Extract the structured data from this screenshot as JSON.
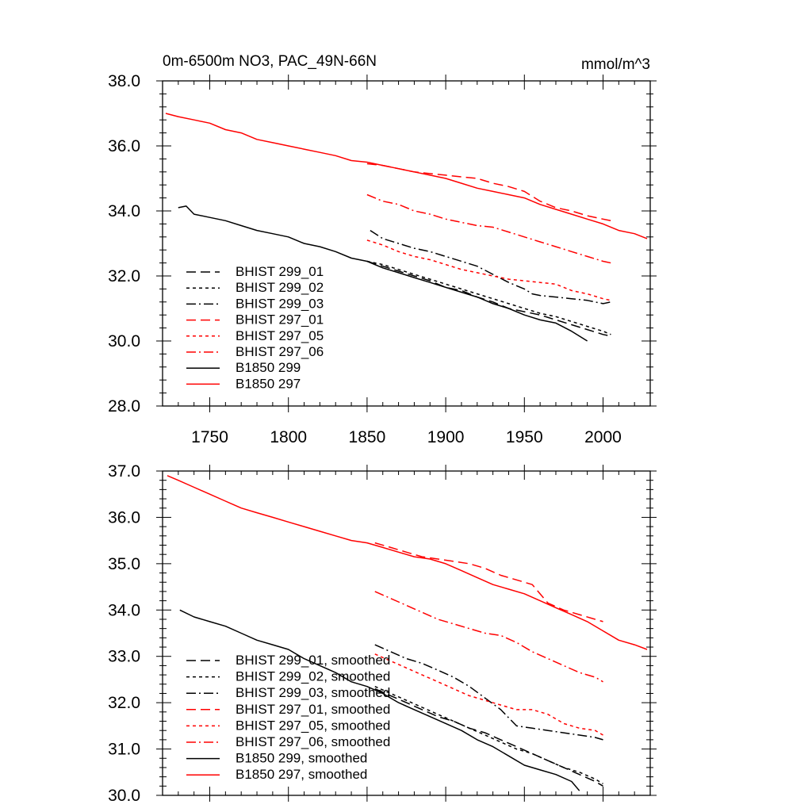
{
  "colors": {
    "black": "#000000",
    "red": "#ff0000"
  },
  "header": {
    "title": "0m-6500m NO3, PAC_49N-66N",
    "units": "mmol/m^3"
  },
  "chart_data": [
    {
      "type": "line",
      "xlim": [
        1720,
        2030
      ],
      "ylim": [
        28,
        38
      ],
      "x_ticks": [
        1750,
        1800,
        1850,
        1900,
        1950,
        2000
      ],
      "x_tick_labels": [
        "1750",
        "1800",
        "1850",
        "1900",
        "1950",
        "2000"
      ],
      "y_ticks": [
        28,
        30,
        32,
        34,
        36,
        38
      ],
      "y_tick_labels": [
        "28.0",
        "30.0",
        "32.0",
        "34.0",
        "36.0",
        "38.0"
      ],
      "legend_position": "bottom-left",
      "series": [
        {
          "name": "BHIST 299_01",
          "color": "#000000",
          "dash": "long-dash",
          "x": [
            1850,
            1860,
            1870,
            1880,
            1890,
            1900,
            1910,
            1920,
            1930,
            1940,
            1950,
            1960,
            1970,
            1980,
            1990,
            2000,
            2005
          ],
          "y": [
            32.45,
            32.3,
            32.15,
            32.0,
            31.85,
            31.65,
            31.55,
            31.35,
            31.2,
            31.0,
            30.9,
            30.8,
            30.65,
            30.5,
            30.35,
            30.2,
            30.15
          ]
        },
        {
          "name": "BHIST 299_02",
          "color": "#000000",
          "dash": "short-dash",
          "x": [
            1850,
            1860,
            1870,
            1880,
            1890,
            1900,
            1910,
            1920,
            1930,
            1940,
            1950,
            1960,
            1970,
            1980,
            1990,
            2000,
            2005
          ],
          "y": [
            32.45,
            32.35,
            32.2,
            32.05,
            31.9,
            31.75,
            31.6,
            31.45,
            31.3,
            31.15,
            31.0,
            30.85,
            30.75,
            30.6,
            30.45,
            30.3,
            30.2
          ]
        },
        {
          "name": "BHIST 299_03",
          "color": "#000000",
          "dash": "dash-dot",
          "x": [
            1852,
            1860,
            1870,
            1880,
            1890,
            1900,
            1910,
            1920,
            1930,
            1940,
            1950,
            1955,
            1960,
            1970,
            1980,
            1990,
            2000,
            2005
          ],
          "y": [
            33.4,
            33.15,
            33.0,
            32.85,
            32.75,
            32.6,
            32.45,
            32.3,
            32.05,
            31.8,
            31.6,
            31.45,
            31.4,
            31.35,
            31.3,
            31.25,
            31.15,
            31.2
          ]
        },
        {
          "name": "BHIST 297_01",
          "color": "#ff0000",
          "dash": "long-dash",
          "x": [
            1850,
            1860,
            1870,
            1880,
            1890,
            1900,
            1910,
            1920,
            1930,
            1940,
            1950,
            1960,
            1970,
            1980,
            1990,
            2000,
            2005
          ],
          "y": [
            35.45,
            35.4,
            35.3,
            35.2,
            35.15,
            35.1,
            35.05,
            35.0,
            34.85,
            34.75,
            34.6,
            34.3,
            34.1,
            34.0,
            33.85,
            33.75,
            33.7
          ]
        },
        {
          "name": "BHIST 297_05",
          "color": "#ff0000",
          "dash": "short-dash",
          "x": [
            1850,
            1860,
            1870,
            1880,
            1890,
            1900,
            1910,
            1920,
            1930,
            1940,
            1950,
            1960,
            1970,
            1980,
            1990,
            2000,
            2005
          ],
          "y": [
            33.1,
            32.95,
            32.75,
            32.6,
            32.5,
            32.35,
            32.2,
            32.1,
            32.0,
            31.9,
            31.85,
            31.8,
            31.75,
            31.55,
            31.45,
            31.3,
            31.25
          ]
        },
        {
          "name": "BHIST 297_06",
          "color": "#ff0000",
          "dash": "dash-dot",
          "x": [
            1850,
            1860,
            1870,
            1880,
            1890,
            1900,
            1910,
            1920,
            1930,
            1940,
            1950,
            1960,
            1970,
            1980,
            1990,
            2000,
            2005
          ],
          "y": [
            34.5,
            34.3,
            34.2,
            34.0,
            33.9,
            33.75,
            33.65,
            33.55,
            33.5,
            33.35,
            33.2,
            33.05,
            32.9,
            32.75,
            32.6,
            32.45,
            32.4
          ]
        },
        {
          "name": "B1850 299",
          "color": "#000000",
          "dash": "solid",
          "x": [
            1730,
            1735,
            1740,
            1750,
            1760,
            1770,
            1780,
            1790,
            1800,
            1810,
            1820,
            1830,
            1840,
            1850,
            1860,
            1870,
            1880,
            1890,
            1900,
            1910,
            1920,
            1930,
            1940,
            1950,
            1960,
            1970,
            1980,
            1990
          ],
          "y": [
            34.1,
            34.15,
            33.9,
            33.8,
            33.7,
            33.55,
            33.4,
            33.3,
            33.2,
            33.0,
            32.9,
            32.75,
            32.55,
            32.45,
            32.25,
            32.1,
            31.95,
            31.8,
            31.65,
            31.5,
            31.35,
            31.15,
            31.0,
            30.8,
            30.65,
            30.55,
            30.3,
            30.0
          ]
        },
        {
          "name": "B1850 297",
          "color": "#ff0000",
          "dash": "solid",
          "x": [
            1722,
            1730,
            1740,
            1750,
            1760,
            1770,
            1780,
            1790,
            1800,
            1810,
            1820,
            1830,
            1840,
            1850,
            1860,
            1870,
            1880,
            1890,
            1900,
            1910,
            1920,
            1930,
            1940,
            1950,
            1960,
            1970,
            1980,
            1990,
            2000,
            2010,
            2020,
            2028
          ],
          "y": [
            37.0,
            36.9,
            36.8,
            36.7,
            36.5,
            36.4,
            36.2,
            36.1,
            36.0,
            35.9,
            35.8,
            35.7,
            35.55,
            35.5,
            35.4,
            35.3,
            35.2,
            35.1,
            35.0,
            34.85,
            34.7,
            34.6,
            34.5,
            34.4,
            34.2,
            34.05,
            33.9,
            33.75,
            33.6,
            33.4,
            33.3,
            33.15
          ]
        }
      ]
    },
    {
      "type": "line",
      "xlim": [
        1720,
        2030
      ],
      "ylim": [
        30,
        37
      ],
      "x_ticks": [
        1750,
        1800,
        1850,
        1900,
        1950,
        2000
      ],
      "x_tick_labels": [],
      "y_ticks": [
        30,
        31,
        32,
        33,
        34,
        35,
        36,
        37
      ],
      "y_tick_labels": [
        "30.0",
        "31.0",
        "32.0",
        "33.0",
        "34.0",
        "35.0",
        "36.0",
        "37.0"
      ],
      "legend_position": "bottom-left",
      "series": [
        {
          "name": "BHIST 299_01, smoothed",
          "color": "#000000",
          "dash": "long-dash",
          "x": [
            1855,
            1865,
            1875,
            1885,
            1895,
            1905,
            1915,
            1925,
            1935,
            1945,
            1955,
            1965,
            1975,
            1985,
            1995,
            2000
          ],
          "y": [
            32.3,
            32.15,
            32.0,
            31.85,
            31.7,
            31.6,
            31.45,
            31.35,
            31.2,
            31.05,
            30.9,
            30.75,
            30.6,
            30.45,
            30.3,
            30.2
          ]
        },
        {
          "name": "BHIST 299_02, smoothed",
          "color": "#000000",
          "dash": "short-dash",
          "x": [
            1855,
            1865,
            1875,
            1885,
            1895,
            1905,
            1915,
            1925,
            1935,
            1945,
            1955,
            1965,
            1975,
            1985,
            1995,
            2000
          ],
          "y": [
            32.35,
            32.2,
            32.05,
            31.9,
            31.75,
            31.6,
            31.45,
            31.3,
            31.15,
            31.0,
            30.9,
            30.75,
            30.6,
            30.5,
            30.35,
            30.25
          ]
        },
        {
          "name": "BHIST 299_03, smoothed",
          "color": "#000000",
          "dash": "dash-dot",
          "x": [
            1855,
            1865,
            1875,
            1885,
            1895,
            1905,
            1915,
            1925,
            1935,
            1945,
            1955,
            1965,
            1975,
            1985,
            1995,
            2000
          ],
          "y": [
            33.25,
            33.1,
            32.95,
            32.85,
            32.7,
            32.55,
            32.35,
            32.1,
            31.85,
            31.5,
            31.45,
            31.4,
            31.35,
            31.3,
            31.25,
            31.2
          ]
        },
        {
          "name": "BHIST 297_01, smoothed",
          "color": "#ff0000",
          "dash": "long-dash",
          "x": [
            1855,
            1865,
            1875,
            1885,
            1895,
            1905,
            1915,
            1925,
            1935,
            1945,
            1955,
            1965,
            1975,
            1985,
            1995,
            2000
          ],
          "y": [
            35.45,
            35.35,
            35.25,
            35.15,
            35.1,
            35.05,
            35.0,
            34.9,
            34.75,
            34.65,
            34.55,
            34.15,
            34.0,
            33.9,
            33.8,
            33.75
          ]
        },
        {
          "name": "BHIST 297_05, smoothed",
          "color": "#ff0000",
          "dash": "short-dash",
          "x": [
            1855,
            1865,
            1875,
            1885,
            1895,
            1905,
            1915,
            1925,
            1935,
            1945,
            1955,
            1965,
            1975,
            1985,
            1995,
            2000
          ],
          "y": [
            33.05,
            32.9,
            32.75,
            32.6,
            32.45,
            32.3,
            32.15,
            32.05,
            31.95,
            31.85,
            31.85,
            31.75,
            31.55,
            31.45,
            31.4,
            31.3
          ]
        },
        {
          "name": "BHIST 297_06, smoothed",
          "color": "#ff0000",
          "dash": "dash-dot",
          "x": [
            1855,
            1865,
            1875,
            1885,
            1895,
            1905,
            1915,
            1925,
            1935,
            1945,
            1955,
            1965,
            1975,
            1985,
            1995,
            2000
          ],
          "y": [
            34.4,
            34.25,
            34.1,
            33.95,
            33.8,
            33.7,
            33.6,
            33.5,
            33.45,
            33.3,
            33.1,
            32.95,
            32.8,
            32.65,
            32.55,
            32.45
          ]
        },
        {
          "name": "B1850 299, smoothed",
          "color": "#000000",
          "dash": "solid",
          "x": [
            1731,
            1740,
            1750,
            1760,
            1770,
            1780,
            1790,
            1800,
            1810,
            1820,
            1830,
            1840,
            1850,
            1860,
            1870,
            1880,
            1890,
            1900,
            1910,
            1920,
            1930,
            1940,
            1950,
            1960,
            1970,
            1980,
            1985
          ],
          "y": [
            34.0,
            33.85,
            33.75,
            33.65,
            33.5,
            33.35,
            33.25,
            33.15,
            32.95,
            32.8,
            32.65,
            32.45,
            32.35,
            32.2,
            32.0,
            31.85,
            31.7,
            31.55,
            31.4,
            31.2,
            31.05,
            30.85,
            30.65,
            30.55,
            30.45,
            30.3,
            30.1
          ]
        },
        {
          "name": "B1850 297, smoothed",
          "color": "#ff0000",
          "dash": "solid",
          "x": [
            1723,
            1730,
            1740,
            1750,
            1760,
            1770,
            1780,
            1790,
            1800,
            1810,
            1820,
            1830,
            1840,
            1850,
            1860,
            1870,
            1880,
            1890,
            1900,
            1910,
            1920,
            1930,
            1940,
            1950,
            1960,
            1970,
            1980,
            1990,
            2000,
            2010,
            2020,
            2028
          ],
          "y": [
            36.9,
            36.8,
            36.65,
            36.5,
            36.35,
            36.2,
            36.1,
            36.0,
            35.9,
            35.8,
            35.7,
            35.6,
            35.5,
            35.45,
            35.35,
            35.25,
            35.15,
            35.1,
            35.0,
            34.85,
            34.7,
            34.55,
            34.45,
            34.35,
            34.2,
            34.05,
            33.9,
            33.75,
            33.55,
            33.35,
            33.25,
            33.15
          ]
        }
      ]
    }
  ]
}
